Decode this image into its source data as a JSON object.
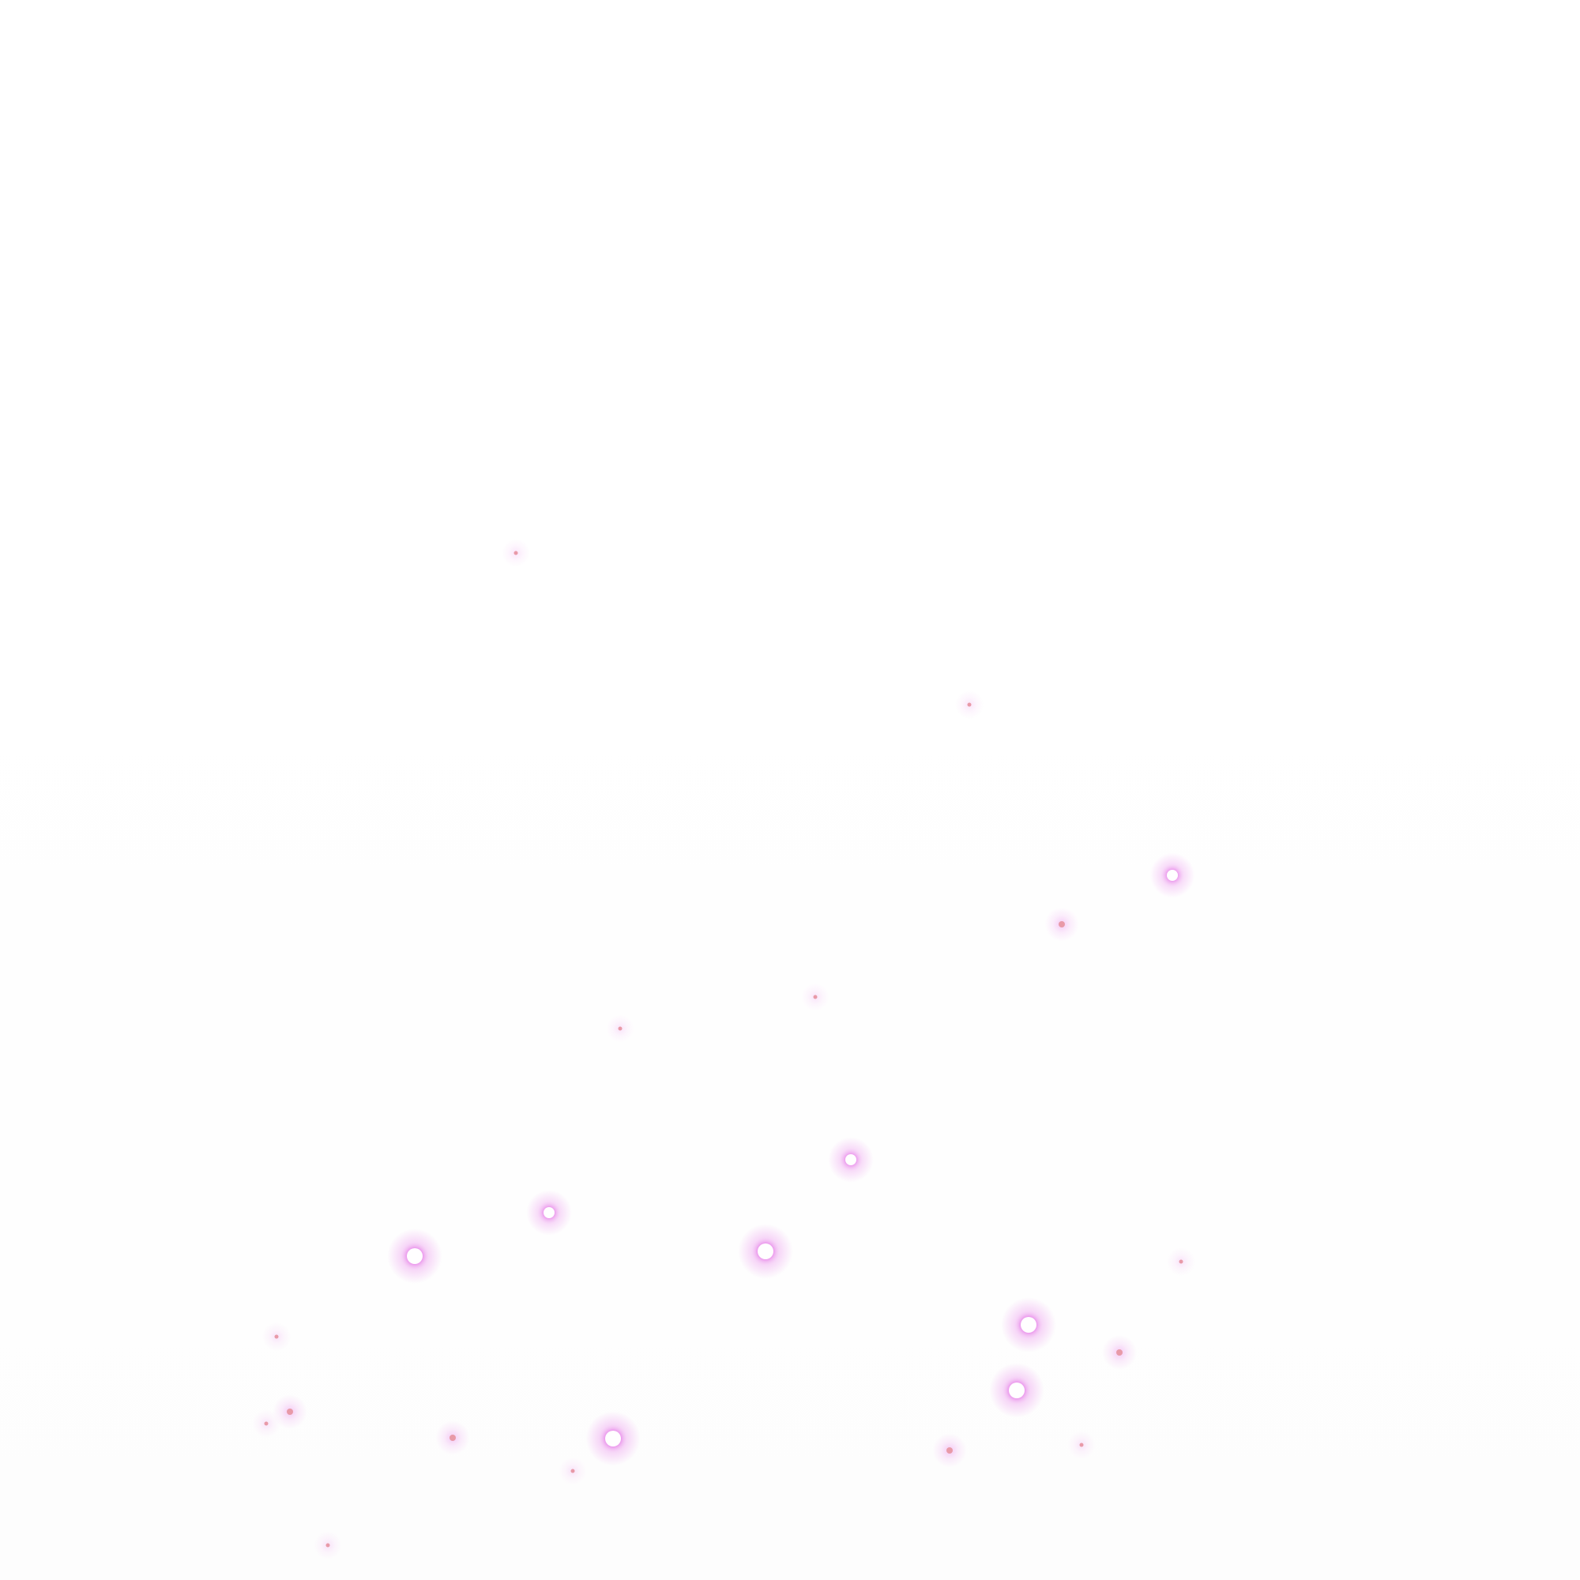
{
  "colors": {
    "glow": "#e36be6",
    "core_bright": "#ffffff",
    "core_dim": "#e89aa8",
    "background": "#ffffff"
  },
  "particle_types": [
    "bright",
    "medium",
    "dim",
    "faint"
  ]
}
